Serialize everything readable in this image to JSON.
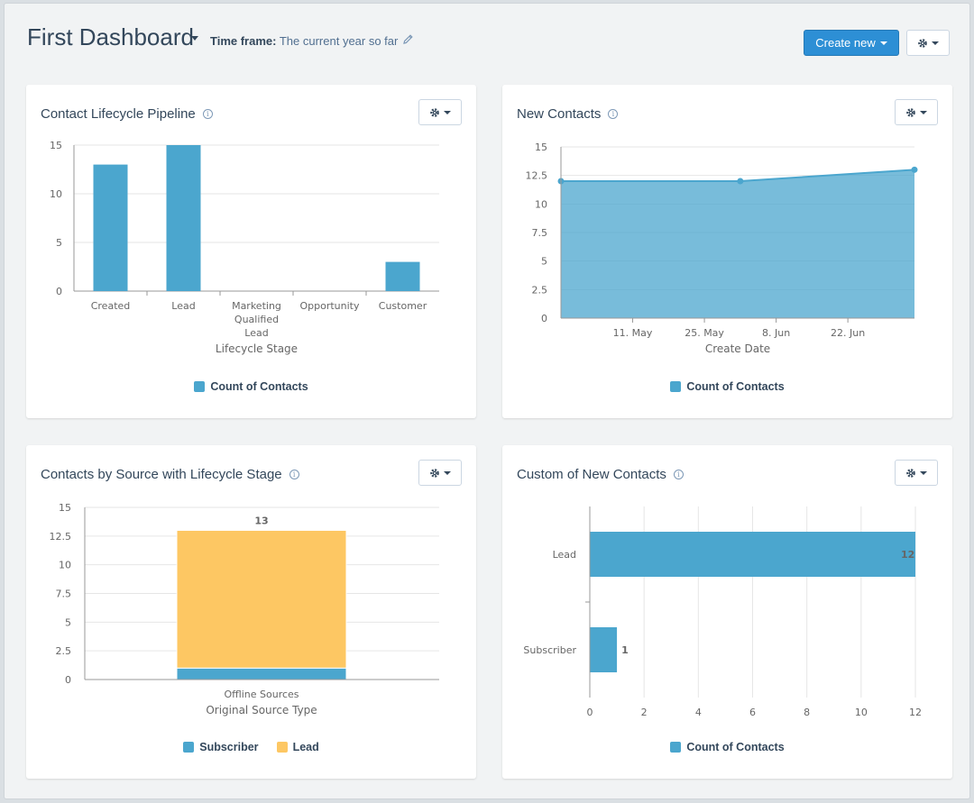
{
  "header": {
    "title": "First Dashboard",
    "timeframe_label": "Time frame:",
    "timeframe_value": "The current year so far",
    "create_new_label": "Create new"
  },
  "colors": {
    "blue": "#4ba6ce",
    "yellow": "#fdc763",
    "primary_button": "#2d8fd5"
  },
  "cards": {
    "lifecycle": {
      "title": "Contact Lifecycle Pipeline",
      "legend": "Count of Contacts"
    },
    "new_contacts": {
      "title": "New Contacts",
      "legend": "Count of Contacts"
    },
    "by_source": {
      "title": "Contacts by Source with Lifecycle Stage",
      "legend_subscriber": "Subscriber",
      "legend_lead": "Lead"
    },
    "custom": {
      "title": "Custom of New Contacts",
      "legend": "Count of Contacts"
    }
  },
  "chart_data": [
    {
      "id": "lifecycle",
      "type": "bar",
      "categories": [
        [
          "Created"
        ],
        [
          "Lead"
        ],
        [
          "Marketing",
          "Qualified",
          "Lead"
        ],
        [
          "Opportunity"
        ],
        [
          "Customer"
        ]
      ],
      "series": [
        {
          "name": "Count of Contacts",
          "values": [
            13,
            15,
            0,
            0,
            3
          ]
        }
      ],
      "xlabel": "Lifecycle Stage",
      "ylabel": "",
      "ylim": [
        0,
        15
      ],
      "yticks": [
        "0",
        "5",
        "10",
        "15"
      ],
      "grid": true,
      "legend": "bottom"
    },
    {
      "id": "new_contacts",
      "type": "area",
      "x": [
        "2019-04-27",
        "2019-06-01",
        "2019-07-05"
      ],
      "series": [
        {
          "name": "Count of Contacts",
          "values": [
            12,
            12,
            13
          ]
        }
      ],
      "xticks": [
        "11. May",
        "25. May",
        "8. Jun",
        "22. Jun"
      ],
      "xlabel": "Create Date",
      "ylabel": "",
      "ylim": [
        0,
        15
      ],
      "yticks": [
        "0",
        "2.5",
        "5",
        "7.5",
        "10",
        "12.5",
        "15"
      ],
      "grid": true,
      "legend": "bottom"
    },
    {
      "id": "by_source",
      "type": "bar",
      "stacked": true,
      "categories": [
        "Offline Sources"
      ],
      "series": [
        {
          "name": "Subscriber",
          "values": [
            1
          ]
        },
        {
          "name": "Lead",
          "values": [
            12
          ]
        }
      ],
      "totals": [
        "13"
      ],
      "xlabel": "Original Source Type",
      "ylabel": "",
      "ylim": [
        0,
        15
      ],
      "yticks": [
        "0",
        "2.5",
        "5",
        "7.5",
        "10",
        "12.5",
        "15"
      ],
      "grid": true,
      "legend": "bottom"
    },
    {
      "id": "custom",
      "type": "bar",
      "orientation": "horizontal",
      "categories": [
        "Lead",
        "Subscriber"
      ],
      "series": [
        {
          "name": "Count of Contacts",
          "values": [
            12,
            1
          ]
        }
      ],
      "data_labels": [
        "12",
        "1"
      ],
      "xlim": [
        0,
        12
      ],
      "xticks": [
        "0",
        "2",
        "4",
        "6",
        "8",
        "10",
        "12"
      ],
      "grid": true,
      "legend": "bottom"
    }
  ]
}
